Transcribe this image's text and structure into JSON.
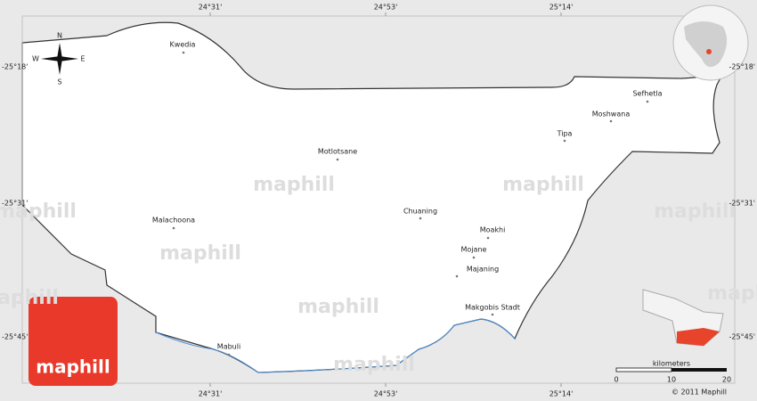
{
  "map": {
    "grid_labels": {
      "top": [
        "24°31'",
        "24°53'",
        "25°14'"
      ],
      "bottom": [
        "24°31'",
        "24°53'",
        "25°14'"
      ],
      "left": [
        "-25°18'",
        "-25°31'",
        "-25°45'"
      ],
      "right": [
        "-25°18'",
        "-25°31'",
        "-25°45'"
      ]
    },
    "compass": {
      "n": "N",
      "e": "E",
      "s": "S",
      "w": "W"
    },
    "places": [
      "Kwedia",
      "Sefhetla",
      "Moshwana",
      "Tipa",
      "Motlotsane",
      "Chuaning",
      "Malachoona",
      "Moakhi",
      "Mojane",
      "Majaning",
      "Makgobis Stadt",
      "Mabuli"
    ],
    "scale": {
      "title": "kilometers",
      "ticks": [
        "0",
        "10",
        "20"
      ]
    },
    "watermark": "maphill",
    "logo": "maphill",
    "copyright": "© 2011 Maphill"
  }
}
